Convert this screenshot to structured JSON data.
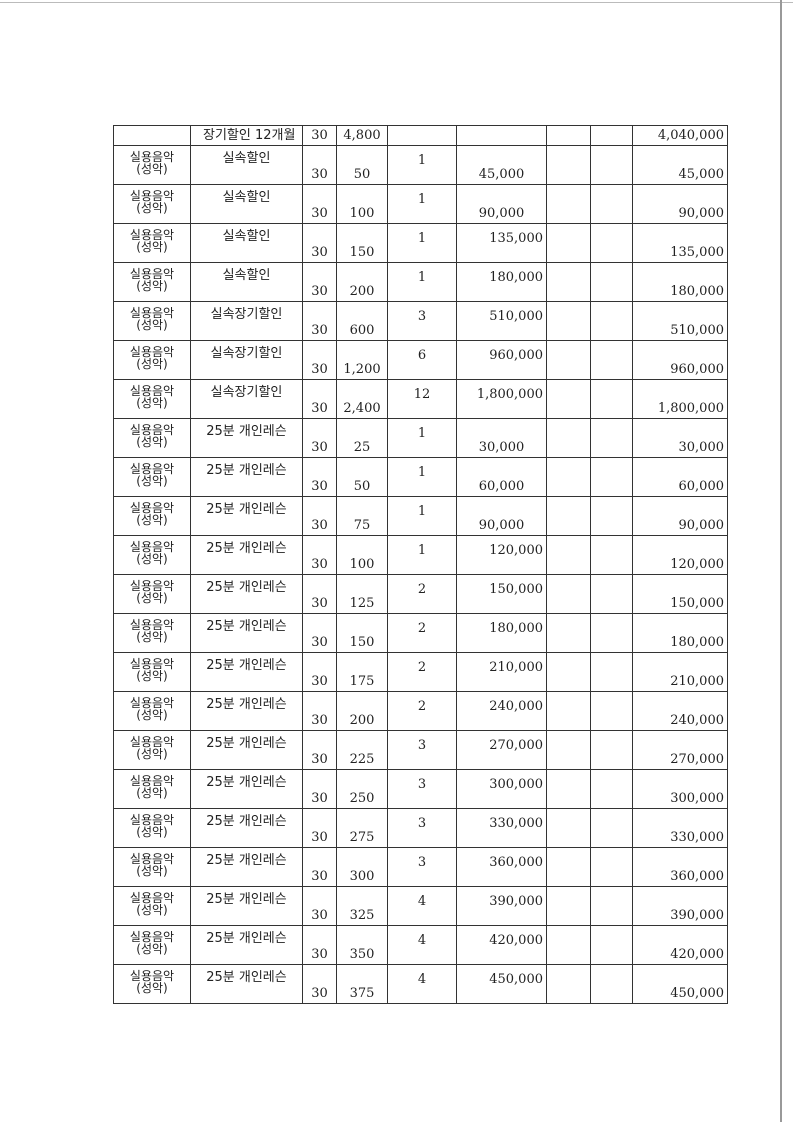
{
  "table": {
    "first_row": {
      "category": "",
      "item": "장기할인 12개월",
      "count": "30",
      "amount": "4,800",
      "months": "",
      "price": "",
      "c7": "",
      "c8": "",
      "total": "4,040,000"
    },
    "rows": [
      {
        "category": "실용음악\n(성악)",
        "item": "실속할인",
        "count": "30",
        "amount": "50",
        "months": "1",
        "price": "45,000",
        "price_pos": "bottom",
        "total": "45,000"
      },
      {
        "category": "실용음악\n(성악)",
        "item": "실속할인",
        "count": "30",
        "amount": "100",
        "months": "1",
        "price": "90,000",
        "price_pos": "bottom",
        "total": "90,000"
      },
      {
        "category": "실용음악\n(성악)",
        "item": "실속할인",
        "count": "30",
        "amount": "150",
        "months": "1",
        "price": "135,000",
        "price_pos": "top",
        "total": "135,000"
      },
      {
        "category": "실용음악\n(성악)",
        "item": "실속할인",
        "count": "30",
        "amount": "200",
        "months": "1",
        "price": "180,000",
        "price_pos": "top",
        "total": "180,000"
      },
      {
        "category": "실용음악\n(성악)",
        "item": "실속장기할인",
        "count": "30",
        "amount": "600",
        "months": "3",
        "price": "510,000",
        "price_pos": "top",
        "total": "510,000"
      },
      {
        "category": "실용음악\n(성악)",
        "item": "실속장기할인",
        "count": "30",
        "amount": "1,200",
        "months": "6",
        "price": "960,000",
        "price_pos": "top",
        "total": "960,000"
      },
      {
        "category": "실용음악\n(성악)",
        "item": "실속장기할인",
        "count": "30",
        "amount": "2,400",
        "months": "12",
        "price": "1,800,000",
        "price_pos": "top",
        "total": "1,800,000"
      },
      {
        "category": "실용음악\n(성악)",
        "item": "25분 개인레슨",
        "count": "30",
        "amount": "25",
        "months": "1",
        "price": "30,000",
        "price_pos": "bottom",
        "total": "30,000"
      },
      {
        "category": "실용음악\n(성악)",
        "item": "25분 개인레슨",
        "count": "30",
        "amount": "50",
        "months": "1",
        "price": "60,000",
        "price_pos": "bottom",
        "total": "60,000"
      },
      {
        "category": "실용음악\n(성악)",
        "item": "25분 개인레슨",
        "count": "30",
        "amount": "75",
        "months": "1",
        "price": "90,000",
        "price_pos": "bottom",
        "total": "90,000"
      },
      {
        "category": "실용음악\n(성악)",
        "item": "25분 개인레슨",
        "count": "30",
        "amount": "100",
        "months": "1",
        "price": "120,000",
        "price_pos": "top",
        "total": "120,000"
      },
      {
        "category": "실용음악\n(성악)",
        "item": "25분 개인레슨",
        "count": "30",
        "amount": "125",
        "months": "2",
        "price": "150,000",
        "price_pos": "top",
        "total": "150,000"
      },
      {
        "category": "실용음악\n(성악)",
        "item": "25분 개인레슨",
        "count": "30",
        "amount": "150",
        "months": "2",
        "price": "180,000",
        "price_pos": "top",
        "total": "180,000"
      },
      {
        "category": "실용음악\n(성악)",
        "item": "25분 개인레슨",
        "count": "30",
        "amount": "175",
        "months": "2",
        "price": "210,000",
        "price_pos": "top",
        "total": "210,000"
      },
      {
        "category": "실용음악\n(성악)",
        "item": "25분 개인레슨",
        "count": "30",
        "amount": "200",
        "months": "2",
        "price": "240,000",
        "price_pos": "top",
        "total": "240,000"
      },
      {
        "category": "실용음악\n(성악)",
        "item": "25분 개인레슨",
        "count": "30",
        "amount": "225",
        "months": "3",
        "price": "270,000",
        "price_pos": "top",
        "total": "270,000"
      },
      {
        "category": "실용음악\n(성악)",
        "item": "25분 개인레슨",
        "count": "30",
        "amount": "250",
        "months": "3",
        "price": "300,000",
        "price_pos": "top",
        "total": "300,000"
      },
      {
        "category": "실용음악\n(성악)",
        "item": "25분 개인레슨",
        "count": "30",
        "amount": "275",
        "months": "3",
        "price": "330,000",
        "price_pos": "top",
        "total": "330,000"
      },
      {
        "category": "실용음악\n(성악)",
        "item": "25분 개인레슨",
        "count": "30",
        "amount": "300",
        "months": "3",
        "price": "360,000",
        "price_pos": "top",
        "total": "360,000"
      },
      {
        "category": "실용음악\n(성악)",
        "item": "25분 개인레슨",
        "count": "30",
        "amount": "325",
        "months": "4",
        "price": "390,000",
        "price_pos": "top",
        "total": "390,000"
      },
      {
        "category": "실용음악\n(성악)",
        "item": "25분 개인레슨",
        "count": "30",
        "amount": "350",
        "months": "4",
        "price": "420,000",
        "price_pos": "top",
        "total": "420,000"
      },
      {
        "category": "실용음악\n(성악)",
        "item": "25분 개인레슨",
        "count": "30",
        "amount": "375",
        "months": "4",
        "price": "450,000",
        "price_pos": "top",
        "total": "450,000"
      }
    ]
  }
}
